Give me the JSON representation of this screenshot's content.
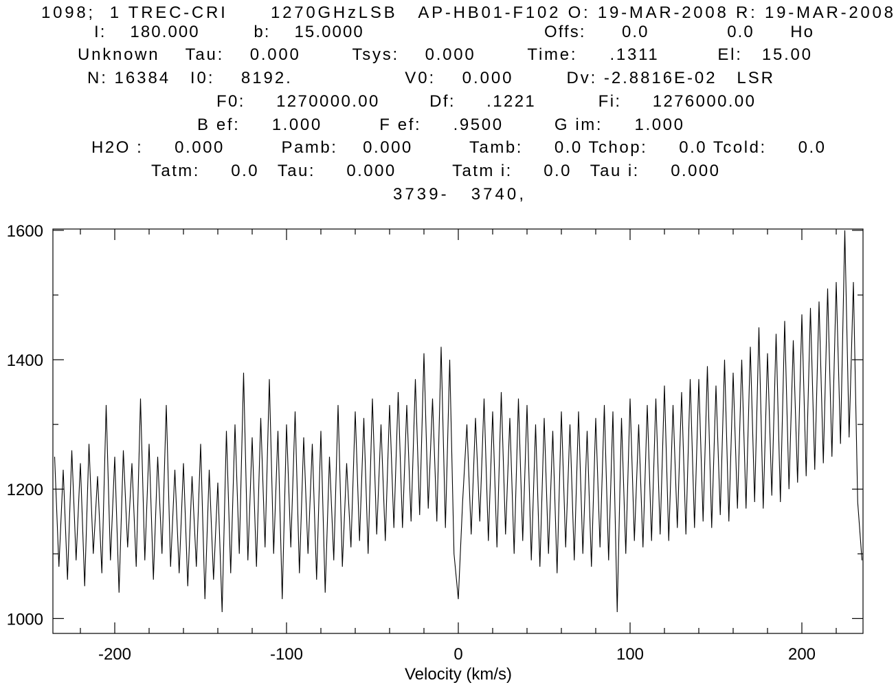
{
  "chart_data": {
    "type": "line",
    "header": [
      "1098;  1 TREC-CRI      1270GHzLSB   AP-HB01-F102 O: 19-MAR-2008 R: 19-MAR-2008",
      "I:    180.000         b:    15.0000                              Offs:      0.0             0.0      Ho",
      "Unknown    Tau:    0.000        Tsys:    0.000        Time:     .1311         El:   15.00",
      "N: 16384   I0:    8192.                 V0:    0.000        Dv: -2.8816E-02   LSR",
      "F0:     1270000.00        Df:     .1221          Fi:     1276000.00",
      "B ef:     1.000         F ef:     .9500        G im:     1.000",
      "H2O :     0.000         Pamb:    0.000         Tamb:     0.0 Tchop:     0.0 Tcold:     0.0",
      "Tatm:     0.0   Tau:     0.000         Tatm i:     0.0   Tau i:     0.000",
      "3739-   3740,"
    ],
    "xlabel": "Velocity (km/s)",
    "xlim": [
      -236,
      235.6
    ],
    "ylim": [
      977,
      1602
    ],
    "xticks": [
      -200,
      -100,
      0,
      100,
      200
    ],
    "xminorticks": [
      -220,
      -180,
      -160,
      -140,
      -120,
      -80,
      -60,
      -40,
      -20,
      20,
      40,
      60,
      80,
      120,
      140,
      160,
      180,
      220
    ],
    "yticks": [
      1000,
      1200,
      1400,
      1600
    ],
    "yminorticks": [
      1100,
      1300,
      1500
    ],
    "color": "#000000",
    "x": [
      -235,
      -232.5,
      -230,
      -227.5,
      -225,
      -222.5,
      -220,
      -217.5,
      -215,
      -212.5,
      -210,
      -207.5,
      -205,
      -202.5,
      -200,
      -197.5,
      -195,
      -192.5,
      -190,
      -187.5,
      -185,
      -182.5,
      -180,
      -177.5,
      -175,
      -172.5,
      -170,
      -167.5,
      -165,
      -162.5,
      -160,
      -157.5,
      -155,
      -152.5,
      -150,
      -147.5,
      -145,
      -142.5,
      -140,
      -137.5,
      -135,
      -132.5,
      -130,
      -127.5,
      -125,
      -122.5,
      -120,
      -117.5,
      -115,
      -112.5,
      -110,
      -107.5,
      -105,
      -102.5,
      -100,
      -97.5,
      -95,
      -92.5,
      -90,
      -87.5,
      -85,
      -82.5,
      -80,
      -77.5,
      -75,
      -72.5,
      -70,
      -67.5,
      -65,
      -62.5,
      -60,
      -57.5,
      -55,
      -52.5,
      -50,
      -47.5,
      -45,
      -42.5,
      -40,
      -37.5,
      -35,
      -32.5,
      -30,
      -27.5,
      -25,
      -22.5,
      -20,
      -17.5,
      -15,
      -12.5,
      -10,
      -7.5,
      -5,
      -2.5,
      0,
      2.5,
      5,
      7.5,
      10,
      12.5,
      15,
      17.5,
      20,
      22.5,
      25,
      27.5,
      30,
      32.5,
      35,
      37.5,
      40,
      42.5,
      45,
      47.5,
      50,
      52.5,
      55,
      57.5,
      60,
      62.5,
      65,
      67.5,
      70,
      72.5,
      75,
      77.5,
      80,
      82.5,
      85,
      87.5,
      90,
      92.5,
      95,
      97.5,
      100,
      102.5,
      105,
      107.5,
      110,
      112.5,
      115,
      117.5,
      120,
      122.5,
      125,
      127.5,
      130,
      132.5,
      135,
      137.5,
      140,
      142.5,
      145,
      147.5,
      150,
      152.5,
      155,
      157.5,
      160,
      162.5,
      165,
      167.5,
      170,
      172.5,
      175,
      177.5,
      180,
      182.5,
      185,
      187.5,
      190,
      192.5,
      195,
      197.5,
      200,
      202.5,
      205,
      207.5,
      210,
      212.5,
      215,
      217.5,
      220,
      222.5,
      225,
      227.5,
      230,
      232.5,
      235
    ],
    "values": [
      1250,
      1080,
      1230,
      1060,
      1260,
      1090,
      1240,
      1050,
      1270,
      1100,
      1220,
      1070,
      1330,
      1090,
      1250,
      1040,
      1260,
      1110,
      1240,
      1080,
      1340,
      1090,
      1270,
      1060,
      1250,
      1100,
      1330,
      1080,
      1230,
      1070,
      1240,
      1050,
      1220,
      1080,
      1270,
      1030,
      1230,
      1060,
      1210,
      1010,
      1290,
      1070,
      1300,
      1100,
      1380,
      1090,
      1280,
      1080,
      1310,
      1110,
      1370,
      1100,
      1290,
      1030,
      1300,
      1110,
      1320,
      1070,
      1280,
      1100,
      1270,
      1060,
      1290,
      1040,
      1250,
      1090,
      1330,
      1080,
      1240,
      1110,
      1320,
      1120,
      1310,
      1100,
      1340,
      1130,
      1300,
      1120,
      1330,
      1140,
      1350,
      1140,
      1330,
      1150,
      1370,
      1160,
      1410,
      1170,
      1340,
      1150,
      1420,
      1140,
      1400,
      1100,
      1030,
      1180,
      1300,
      1130,
      1310,
      1150,
      1340,
      1120,
      1320,
      1110,
      1350,
      1130,
      1310,
      1100,
      1340,
      1120,
      1330,
      1090,
      1300,
      1080,
      1310,
      1100,
      1290,
      1070,
      1320,
      1110,
      1300,
      1090,
      1320,
      1100,
      1290,
      1080,
      1310,
      1110,
      1330,
      1090,
      1320,
      1010,
      1310,
      1100,
      1340,
      1120,
      1300,
      1110,
      1330,
      1120,
      1340,
      1130,
      1360,
      1120,
      1330,
      1140,
      1350,
      1130,
      1370,
      1140,
      1370,
      1150,
      1390,
      1140,
      1360,
      1160,
      1400,
      1150,
      1380,
      1170,
      1400,
      1170,
      1420,
      1180,
      1450,
      1170,
      1410,
      1190,
      1440,
      1180,
      1460,
      1200,
      1430,
      1210,
      1470,
      1220,
      1480,
      1230,
      1490,
      1240,
      1510,
      1250,
      1520,
      1270,
      1600,
      1280,
      1520,
      1180,
      1090
    ]
  }
}
